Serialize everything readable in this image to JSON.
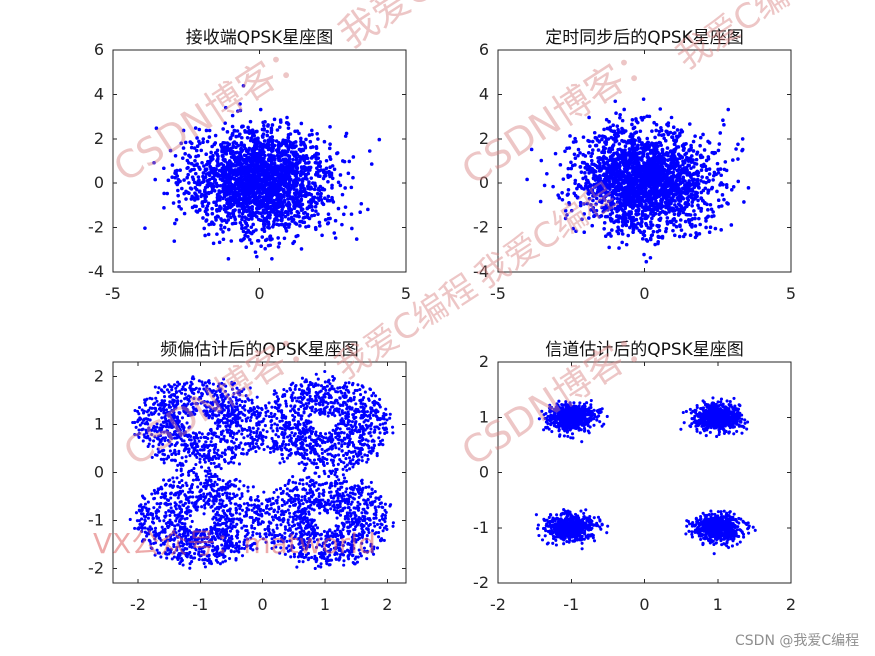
{
  "chart_data": [
    {
      "type": "scatter",
      "title": "接收端QPSK星座图",
      "xlim": [
        -5,
        5
      ],
      "ylim": [
        -4,
        6
      ],
      "xticks": [
        -5,
        0,
        5
      ],
      "yticks": [
        -4,
        -2,
        0,
        2,
        4,
        6
      ],
      "color": "#0000ff",
      "series": [
        {
          "distribution": "gaussian_cloud",
          "center": [
            0,
            0.1
          ],
          "spread": [
            1.2,
            1.15
          ],
          "points": 2200
        }
      ]
    },
    {
      "type": "scatter",
      "title": "定时同步后的QPSK星座图",
      "xlim": [
        -5,
        5
      ],
      "ylim": [
        -4,
        6
      ],
      "xticks": [
        -5,
        0,
        5
      ],
      "yticks": [
        -4,
        -2,
        0,
        2,
        4,
        6
      ],
      "color": "#0000ff",
      "series": [
        {
          "distribution": "gaussian_cloud",
          "center": [
            0,
            0.1
          ],
          "spread": [
            1.15,
            1.1
          ],
          "points": 2200
        }
      ]
    },
    {
      "type": "scatter",
      "title": "频偏估计后的QPSK星座图",
      "xlim": [
        -2.4,
        2.3
      ],
      "ylim": [
        -2.3,
        2.3
      ],
      "xticks": [
        -2,
        -1,
        0,
        1,
        2
      ],
      "yticks": [
        -2,
        -1,
        0,
        1,
        2
      ],
      "color": "#0000ff",
      "series": [
        {
          "distribution": "ring_clusters",
          "centers": [
            [
              -1,
              1
            ],
            [
              1,
              1
            ],
            [
              -1,
              -1
            ],
            [
              1,
              -1
            ]
          ],
          "inner_radius": 0.25,
          "outer_radius": 1.05,
          "points_per_cluster": 950
        }
      ]
    },
    {
      "type": "scatter",
      "title": "信道估计后的QPSK星座图",
      "xlim": [
        -2,
        2
      ],
      "ylim": [
        -2,
        2
      ],
      "xticks": [
        -2,
        -1,
        0,
        1,
        2
      ],
      "yticks": [
        -2,
        -1,
        0,
        1,
        2
      ],
      "color": "#0000ff",
      "series": [
        {
          "distribution": "tight_clusters",
          "centers": [
            [
              -1,
              1
            ],
            [
              1,
              1
            ],
            [
              -1,
              -1
            ],
            [
              1,
              -1
            ]
          ],
          "spread": [
            0.16,
            0.12
          ],
          "points_per_cluster": 700
        }
      ]
    }
  ],
  "watermarks": {
    "blog_a": "我爱C编",
    "blog_b": "CSDN博客：",
    "blog_c": "我爱C编程",
    "vx": "VX公众号：matworld"
  },
  "footer": {
    "text": "CSDN @我爱C编程"
  }
}
